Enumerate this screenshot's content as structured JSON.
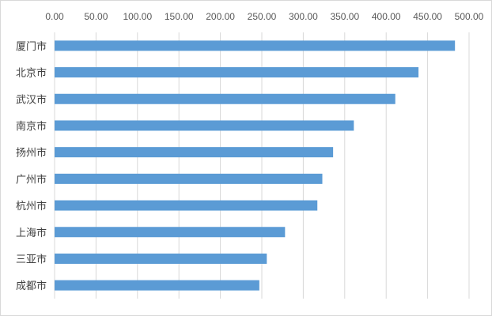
{
  "chart_data": {
    "type": "bar",
    "orientation": "horizontal",
    "categories": [
      "厦门市",
      "北京市",
      "武汉市",
      "南京市",
      "扬州市",
      "广州市",
      "杭州市",
      "上海市",
      "三亚市",
      "成都市"
    ],
    "values": [
      483,
      439,
      411,
      361,
      336,
      323,
      317,
      278,
      256,
      247
    ],
    "x_ticks": [
      "0.00",
      "50.00",
      "100.00",
      "150.00",
      "200.00",
      "250.00",
      "300.00",
      "350.00",
      "400.00",
      "450.00",
      "500.00"
    ],
    "xlim": [
      0,
      500
    ],
    "x_axis_position": "top",
    "grid": true,
    "legend": "none",
    "bar_color": "#5b9bd5",
    "grid_color": "#d9d9d9"
  }
}
